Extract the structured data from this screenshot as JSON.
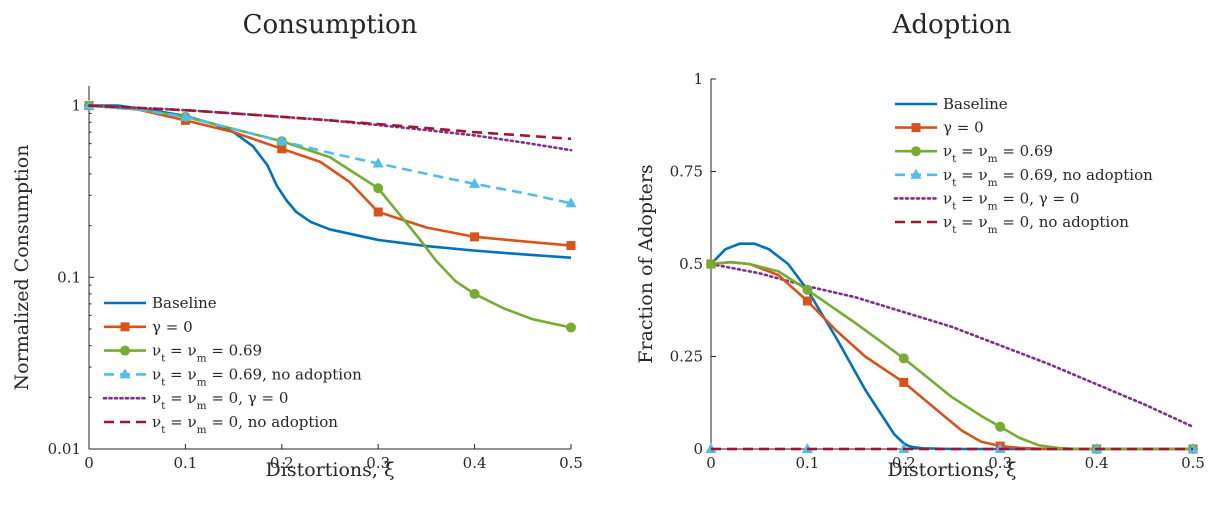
{
  "colors": {
    "baseline": "#0072BD",
    "gamma0": "#D95319",
    "nu069": "#77AC30",
    "nu069_noadopt": "#4DBEEE",
    "nu0_gamma0": "#7E2F8E",
    "nu0_noadopt": "#A2142F",
    "axis": "#262626"
  },
  "chart_data": [
    {
      "type": "line",
      "title": "Consumption",
      "xlabel": "Distortions, ξ",
      "ylabel": "Normalized Consumption",
      "xlim": [
        0,
        0.5
      ],
      "ylim": [
        0.01,
        1.3
      ],
      "yscale": "log",
      "grid": false,
      "legend": "bottom-left",
      "xticks": [
        0,
        0.1,
        0.2,
        0.3,
        0.4,
        0.5
      ],
      "xtick_labels": [
        "0",
        "0.1",
        "0.2",
        "0.3",
        "0.4",
        "0.5"
      ],
      "yticks": [
        0.01,
        0.1,
        1
      ],
      "ytick_labels": [
        "0.01",
        "0.1",
        "1"
      ],
      "series": [
        {
          "name": "Baseline",
          "color_key": "baseline",
          "dash": "solid",
          "marker": "none",
          "x": [
            0,
            0.03,
            0.06,
            0.1,
            0.13,
            0.15,
            0.17,
            0.185,
            0.195,
            0.205,
            0.215,
            0.23,
            0.25,
            0.3,
            0.35,
            0.4,
            0.45,
            0.5
          ],
          "y": [
            1.0,
            1.0,
            0.95,
            0.87,
            0.78,
            0.7,
            0.58,
            0.45,
            0.34,
            0.28,
            0.24,
            0.21,
            0.19,
            0.165,
            0.152,
            0.143,
            0.136,
            0.13
          ]
        },
        {
          "name": "γ = 0",
          "color_key": "gamma0",
          "dash": "solid",
          "marker": "square",
          "x": [
            0,
            0.05,
            0.1,
            0.15,
            0.2,
            0.24,
            0.27,
            0.3,
            0.35,
            0.4,
            0.45,
            0.5
          ],
          "y": [
            1.0,
            0.95,
            0.82,
            0.7,
            0.56,
            0.47,
            0.36,
            0.24,
            0.195,
            0.172,
            0.162,
            0.153
          ],
          "marker_x": [
            0,
            0.1,
            0.2,
            0.3,
            0.4,
            0.5
          ],
          "marker_y": [
            1.0,
            0.82,
            0.56,
            0.24,
            0.172,
            0.153
          ]
        },
        {
          "name": "ν_t = ν_m = 0.69",
          "color_key": "nu069",
          "dash": "solid",
          "marker": "circle",
          "x": [
            0,
            0.05,
            0.1,
            0.15,
            0.2,
            0.25,
            0.3,
            0.32,
            0.34,
            0.36,
            0.38,
            0.4,
            0.43,
            0.46,
            0.5
          ],
          "y": [
            1.0,
            0.95,
            0.86,
            0.73,
            0.62,
            0.5,
            0.33,
            0.24,
            0.175,
            0.125,
            0.095,
            0.08,
            0.066,
            0.057,
            0.051
          ],
          "marker_x": [
            0,
            0.1,
            0.2,
            0.3,
            0.4,
            0.5
          ],
          "marker_y": [
            1.0,
            0.86,
            0.62,
            0.33,
            0.08,
            0.051
          ]
        },
        {
          "name": "ν_t = ν_m = 0.69, no adoption",
          "color_key": "nu069_noadopt",
          "dash": "dashed",
          "marker": "triangle",
          "x": [
            0,
            0.05,
            0.1,
            0.15,
            0.2,
            0.25,
            0.3,
            0.35,
            0.4,
            0.45,
            0.5
          ],
          "y": [
            1.0,
            0.95,
            0.86,
            0.73,
            0.62,
            0.53,
            0.46,
            0.4,
            0.35,
            0.31,
            0.27
          ],
          "marker_x": [
            0,
            0.1,
            0.2,
            0.3,
            0.4,
            0.5
          ],
          "marker_y": [
            1.0,
            0.86,
            0.62,
            0.46,
            0.35,
            0.27
          ]
        },
        {
          "name": "ν_t = ν_m = 0, γ = 0",
          "color_key": "nu0_gamma0",
          "dash": "dotted",
          "marker": "none",
          "x": [
            0,
            0.05,
            0.1,
            0.15,
            0.2,
            0.25,
            0.3,
            0.35,
            0.4,
            0.45,
            0.5
          ],
          "y": [
            1.0,
            0.97,
            0.94,
            0.9,
            0.86,
            0.82,
            0.77,
            0.72,
            0.67,
            0.61,
            0.55
          ]
        },
        {
          "name": "ν_t = ν_m = 0, no adoption",
          "color_key": "nu0_noadopt",
          "dash": "dashed",
          "marker": "none",
          "x": [
            0,
            0.05,
            0.1,
            0.15,
            0.2,
            0.25,
            0.3,
            0.35,
            0.4,
            0.45,
            0.5
          ],
          "y": [
            1.0,
            0.97,
            0.94,
            0.9,
            0.86,
            0.82,
            0.78,
            0.74,
            0.7,
            0.67,
            0.64
          ]
        }
      ]
    },
    {
      "type": "line",
      "title": "Adoption",
      "xlabel": "Distortions, ξ",
      "ylabel": "Fraction of Adopters",
      "xlim": [
        0,
        0.5
      ],
      "ylim": [
        0,
        1
      ],
      "yscale": "linear",
      "grid": false,
      "legend": "top-center",
      "xticks": [
        0,
        0.1,
        0.2,
        0.3,
        0.4,
        0.5
      ],
      "xtick_labels": [
        "0",
        "0.1",
        "0.2",
        "0.3",
        "0.4",
        "0.5"
      ],
      "yticks": [
        0,
        0.25,
        0.5,
        0.75,
        1
      ],
      "ytick_labels": [
        "0",
        "0.25",
        "0.5",
        "0.75",
        "1"
      ],
      "series": [
        {
          "name": "Baseline",
          "color_key": "baseline",
          "dash": "solid",
          "marker": "none",
          "x": [
            0,
            0.015,
            0.03,
            0.045,
            0.06,
            0.08,
            0.1,
            0.13,
            0.16,
            0.19,
            0.2,
            0.205,
            0.21,
            0.22,
            0.25,
            0.3,
            0.4,
            0.5
          ],
          "y": [
            0.5,
            0.54,
            0.555,
            0.555,
            0.54,
            0.5,
            0.43,
            0.3,
            0.16,
            0.04,
            0.015,
            0.008,
            0.005,
            0.002,
            0.0,
            0.0,
            0.0,
            0.0
          ]
        },
        {
          "name": "γ = 0",
          "color_key": "gamma0",
          "dash": "solid",
          "marker": "square",
          "x": [
            0,
            0.02,
            0.04,
            0.07,
            0.1,
            0.13,
            0.16,
            0.2,
            0.23,
            0.26,
            0.28,
            0.3,
            0.32,
            0.35,
            0.4,
            0.45,
            0.5
          ],
          "y": [
            0.5,
            0.505,
            0.5,
            0.47,
            0.4,
            0.32,
            0.25,
            0.18,
            0.115,
            0.05,
            0.02,
            0.008,
            0.003,
            0.0,
            0.0,
            0.0,
            0.0
          ],
          "marker_x": [
            0,
            0.1,
            0.2,
            0.3,
            0.4,
            0.5
          ],
          "marker_y": [
            0.5,
            0.4,
            0.18,
            0.008,
            0.0,
            0.0
          ]
        },
        {
          "name": "ν_t = ν_m = 0.69",
          "color_key": "nu069",
          "dash": "solid",
          "marker": "circle",
          "x": [
            0,
            0.02,
            0.04,
            0.07,
            0.1,
            0.15,
            0.2,
            0.25,
            0.28,
            0.3,
            0.32,
            0.34,
            0.36,
            0.38,
            0.4,
            0.45,
            0.5
          ],
          "y": [
            0.5,
            0.505,
            0.5,
            0.48,
            0.43,
            0.34,
            0.245,
            0.14,
            0.09,
            0.06,
            0.03,
            0.01,
            0.003,
            0.0,
            0.0,
            0.0,
            0.0
          ],
          "marker_x": [
            0,
            0.1,
            0.2,
            0.3,
            0.4,
            0.5
          ],
          "marker_y": [
            0.5,
            0.43,
            0.245,
            0.06,
            0.0,
            0.0
          ]
        },
        {
          "name": "ν_t = ν_m = 0.69, no adoption",
          "color_key": "nu069_noadopt",
          "dash": "dashed",
          "marker": "triangle",
          "x": [
            0,
            0.1,
            0.2,
            0.3,
            0.4,
            0.5
          ],
          "y": [
            0,
            0,
            0,
            0,
            0,
            0
          ],
          "marker_x": [
            0,
            0.1,
            0.2,
            0.3,
            0.4,
            0.5
          ],
          "marker_y": [
            0,
            0,
            0,
            0,
            0,
            0
          ]
        },
        {
          "name": "ν_t = ν_m = 0, γ = 0",
          "color_key": "nu0_gamma0",
          "dash": "dotted",
          "marker": "none",
          "x": [
            0,
            0.05,
            0.1,
            0.15,
            0.2,
            0.25,
            0.3,
            0.35,
            0.4,
            0.45,
            0.5
          ],
          "y": [
            0.5,
            0.475,
            0.44,
            0.41,
            0.37,
            0.33,
            0.28,
            0.23,
            0.175,
            0.12,
            0.06
          ]
        },
        {
          "name": "ν_t = ν_m = 0, no adoption",
          "color_key": "nu0_noadopt",
          "dash": "dashed",
          "marker": "none",
          "x": [
            0,
            0.1,
            0.2,
            0.3,
            0.4,
            0.5
          ],
          "y": [
            0,
            0,
            0,
            0,
            0,
            0
          ]
        }
      ]
    }
  ]
}
